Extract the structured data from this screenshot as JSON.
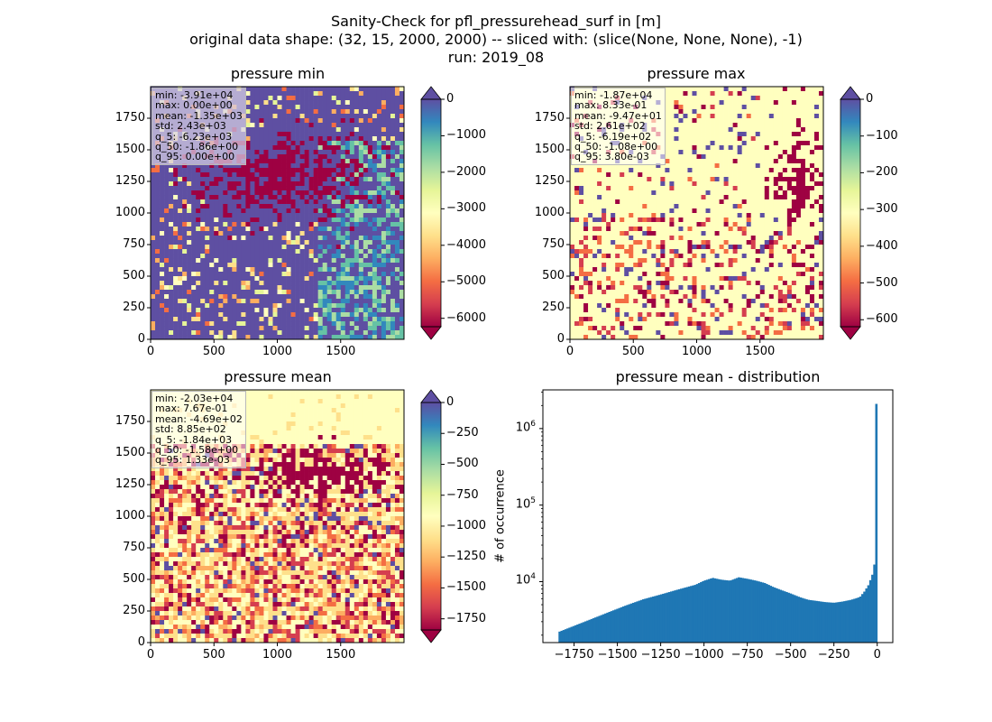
{
  "figure": {
    "title_lines": [
      "Sanity-Check for pfl_pressurehead_surf in [m]",
      "original data shape: (32, 15, 2000, 2000) -- sliced with: (slice(None, None, None), -1)",
      "run: 2019_08"
    ]
  },
  "colors": {
    "spectral": [
      "#9e0142",
      "#d53e4f",
      "#f46d43",
      "#fdae61",
      "#fee08b",
      "#ffffbf",
      "#e6f598",
      "#abdda4",
      "#66c2a5",
      "#3288bd",
      "#5e4fa2"
    ],
    "hist_bar": "#1f77b4"
  },
  "chart_data": [
    {
      "type": "heatmap",
      "title": "pressure min",
      "x_ticks": [
        "0",
        "500",
        "1000",
        "1500"
      ],
      "y_ticks": [
        "0",
        "250",
        "500",
        "750",
        "1000",
        "1250",
        "1500",
        "1750"
      ],
      "xlim": [
        0,
        2000
      ],
      "ylim": [
        0,
        2000
      ],
      "colorbar": {
        "ticks": [
          "0",
          "−1000",
          "−2000",
          "−3000",
          "−4000",
          "−5000",
          "−6000"
        ],
        "tick_values": [
          0,
          -1000,
          -2000,
          -3000,
          -4000,
          -5000,
          -6000
        ],
        "range": [
          -6230,
          0
        ],
        "extend": "both"
      },
      "stats": [
        "min: -3.91e+04",
        "max: 0.00e+00",
        "mean: -1.35e+03",
        "std: 2.43e+03",
        "q_5: -6.23e+03",
        "q_50: -1.86e+00",
        "q_95: 0.00e+00"
      ]
    },
    {
      "type": "heatmap",
      "title": "pressure max",
      "x_ticks": [
        "0",
        "500",
        "1000",
        "1500"
      ],
      "y_ticks": [
        "0",
        "250",
        "500",
        "750",
        "1000",
        "1250",
        "1500",
        "1750"
      ],
      "xlim": [
        0,
        2000
      ],
      "ylim": [
        0,
        2000
      ],
      "colorbar": {
        "ticks": [
          "0",
          "−100",
          "−200",
          "−300",
          "−400",
          "−500",
          "−600"
        ],
        "tick_values": [
          0,
          -100,
          -200,
          -300,
          -400,
          -500,
          -600
        ],
        "range": [
          -619,
          0
        ],
        "extend": "both"
      },
      "stats": [
        "min: -1.87e+04",
        "max: 8.33e-01",
        "mean: -9.47e+01",
        "std: 2.61e+02",
        "q_5: -6.19e+02",
        "q_50: -1.08e+00",
        "q_95: 3.80e-03"
      ]
    },
    {
      "type": "heatmap",
      "title": "pressure mean",
      "x_ticks": [
        "0",
        "500",
        "1000",
        "1500"
      ],
      "y_ticks": [
        "0",
        "250",
        "500",
        "750",
        "1000",
        "1250",
        "1500",
        "1750"
      ],
      "xlim": [
        0,
        2000
      ],
      "ylim": [
        0,
        2000
      ],
      "colorbar": {
        "ticks": [
          "0",
          "−250",
          "−500",
          "−750",
          "−1000",
          "−1250",
          "−1500",
          "−1750"
        ],
        "tick_values": [
          0,
          -250,
          -500,
          -750,
          -1000,
          -1250,
          -1500,
          -1750
        ],
        "range": [
          -1840,
          0
        ],
        "extend": "both"
      },
      "stats": [
        "min: -2.03e+04",
        "max: 7.67e-01",
        "mean: -4.69e+02",
        "std: 8.85e+02",
        "q_5: -1.84e+03",
        "q_50: -1.58e+00",
        "q_95: 1.33e-03"
      ]
    },
    {
      "type": "bar",
      "title": "pressure mean - distribution",
      "ylabel": "# of occurrence",
      "yscale": "log",
      "xlim": [
        -1930,
        90
      ],
      "ylim": [
        1600,
        3200000
      ],
      "x_ticks": [
        "−1750",
        "−1500",
        "−1250",
        "−1000",
        "−750",
        "−500",
        "−250",
        "0"
      ],
      "x_tick_values": [
        -1750,
        -1500,
        -1250,
        -1000,
        -750,
        -500,
        -250,
        0
      ],
      "y_ticks": [
        "10^4",
        "10^5",
        "10^6"
      ],
      "y_tick_values": [
        10000,
        100000,
        1000000
      ],
      "bins": {
        "x": [
          -1840,
          -1750,
          -1650,
          -1550,
          -1450,
          -1350,
          -1250,
          -1150,
          -1050,
          -1000,
          -950,
          -900,
          -850,
          -800,
          -750,
          -700,
          -650,
          -600,
          -550,
          -500,
          -450,
          -400,
          -350,
          -300,
          -250,
          -200,
          -150,
          -100,
          -75,
          -50,
          -25,
          -15,
          -10,
          -5,
          0
        ],
        "y": [
          2200,
          2650,
          3250,
          4000,
          4900,
          5900,
          6800,
          7900,
          9100,
          10300,
          11200,
          10600,
          10300,
          11400,
          10900,
          10300,
          9600,
          8500,
          7700,
          7000,
          6300,
          5800,
          5600,
          5400,
          5300,
          5500,
          5800,
          6300,
          7400,
          9100,
          13000,
          18000,
          28000,
          60000,
          2100000
        ]
      }
    }
  ]
}
